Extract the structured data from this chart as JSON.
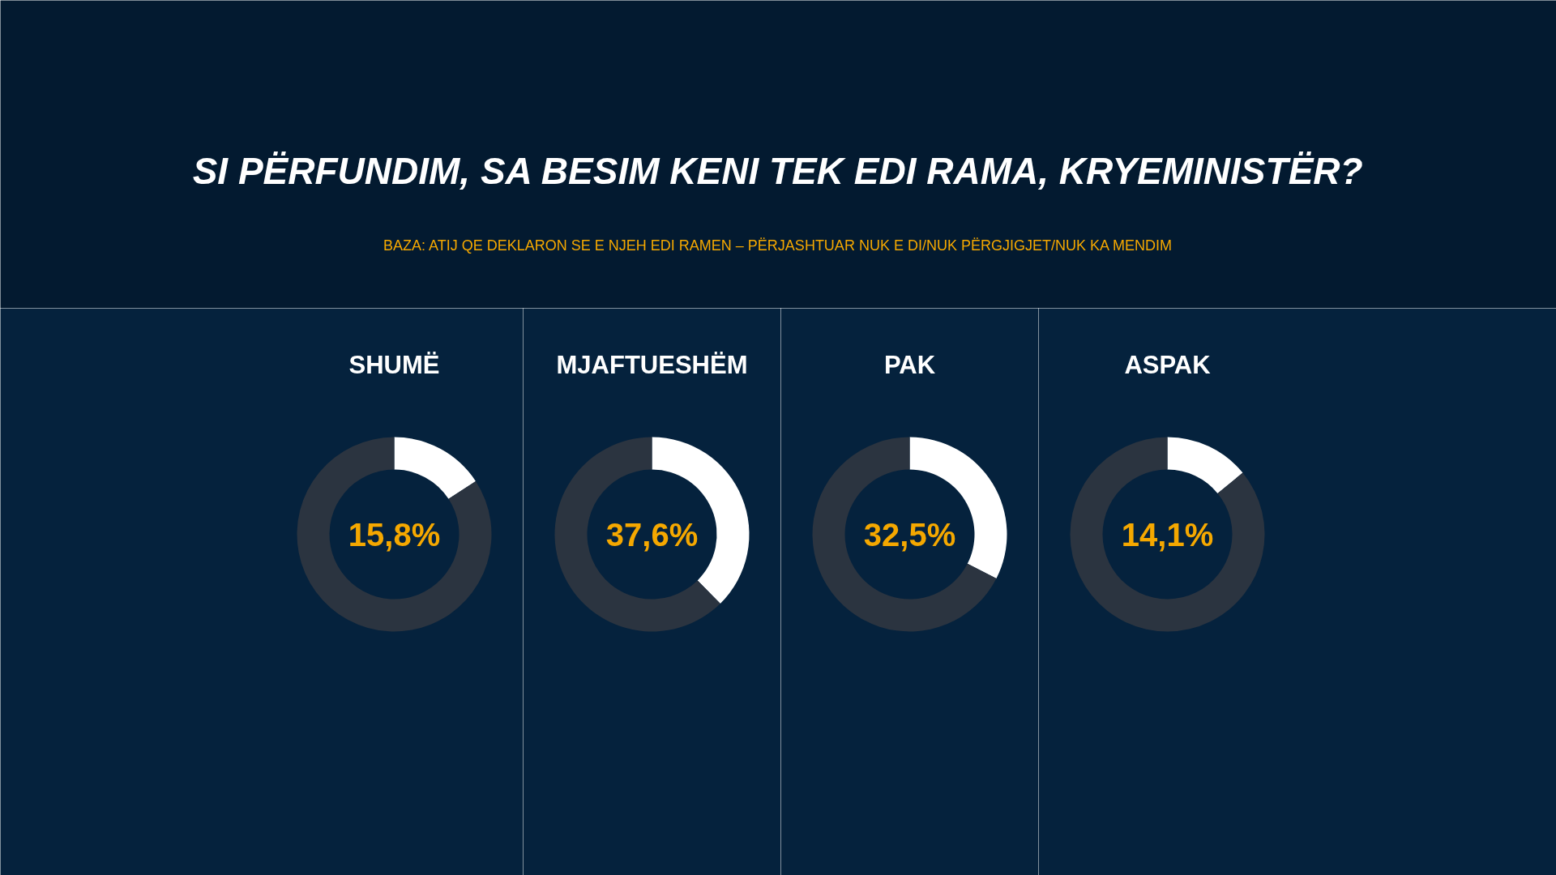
{
  "chart_data": [
    {
      "type": "other",
      "title": "SI PËRFUNDIM, SA BESIM KENI TEK EDI RAMA, KRYEMINISTËR?",
      "subtitle": "BAZA: ATIJ QE DEKLARON SE E NJEH EDI RAMEN – PËRJASHTUAR NUK E DI/NUK PËRGJIGJET/NUK KA MENDIM"
    },
    {
      "type": "donut",
      "title": "SHUMË",
      "categories": [
        null,
        null
      ],
      "values": [
        15.8,
        84.2
      ],
      "colors": [
        "#ffffff",
        "#2b3440"
      ],
      "value_labels": [
        "15,8%",
        null
      ]
    },
    {
      "type": "donut",
      "title": "MJAFTUESHËM",
      "categories": [
        null,
        null
      ],
      "values": [
        37.6,
        62.4
      ],
      "colors": [
        "#ffffff",
        "#2b3440"
      ],
      "value_labels": [
        "37,6%",
        null
      ]
    },
    {
      "type": "donut",
      "title": "PAK",
      "categories": [
        null,
        null
      ],
      "values": [
        32.5,
        67.5
      ],
      "colors": [
        "#ffffff",
        "#2b3440"
      ],
      "value_labels": [
        "32,5%",
        null
      ]
    },
    {
      "type": "donut",
      "title": "ASPAK",
      "categories": [
        null,
        null
      ],
      "values": [
        14.1,
        85.9
      ],
      "colors": [
        "#ffffff",
        "#2b3440"
      ],
      "value_labels": [
        "14,1%",
        null
      ]
    }
  ]
}
